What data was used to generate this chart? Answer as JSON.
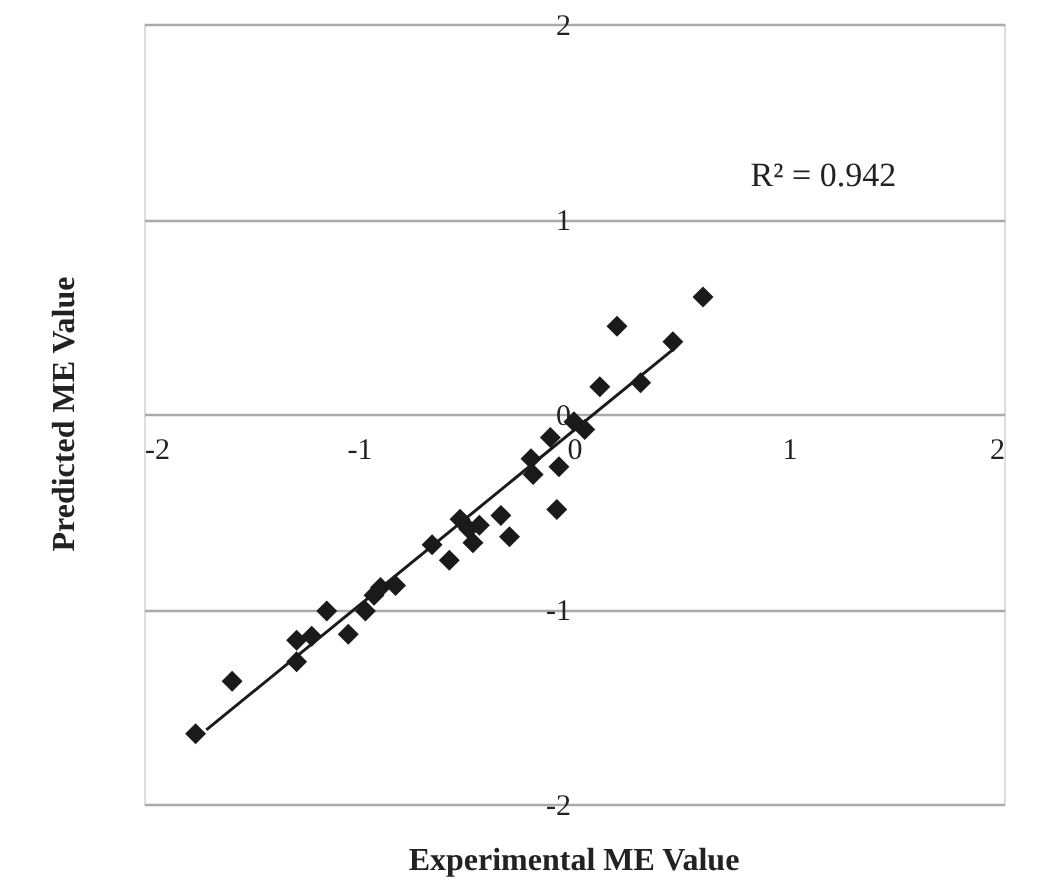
{
  "chart_data": {
    "type": "scatter",
    "xlabel": "Experimental ME Value",
    "ylabel": "Predicted ME Value",
    "xlim": [
      -2,
      2
    ],
    "ylim": [
      -2,
      2
    ],
    "xticks": [
      -2,
      -1,
      0,
      1,
      2
    ],
    "yticks": [
      -2,
      -1,
      0,
      1,
      2
    ],
    "grid": "y",
    "annotations": [
      "R² = 0.942"
    ],
    "series": [
      {
        "type": "scatter",
        "marker": "diamond",
        "color": "#1a1a1a",
        "x": [
          -1.76,
          -1.59,
          -1.29,
          -1.29,
          -1.22,
          -1.15,
          -1.05,
          -0.97,
          -0.93,
          -0.9,
          -0.83,
          -0.66,
          -0.58,
          -0.53,
          -0.49,
          -0.47,
          -0.44,
          -0.34,
          -0.3,
          -0.2,
          -0.19,
          -0.11,
          -0.07,
          -0.08,
          0.0,
          0.05,
          0.12,
          0.2,
          0.31,
          0.46,
          0.6
        ],
        "values": [
          -1.64,
          -1.37,
          -1.27,
          -1.16,
          -1.14,
          -1.01,
          -1.13,
          -1.01,
          -0.93,
          -0.89,
          -0.88,
          -0.67,
          -0.75,
          -0.54,
          -0.59,
          -0.66,
          -0.57,
          -0.52,
          -0.63,
          -0.23,
          -0.31,
          -0.12,
          -0.27,
          -0.49,
          -0.04,
          -0.08,
          0.14,
          0.45,
          0.16,
          0.37,
          0.6
        ]
      },
      {
        "type": "line",
        "marker": "none",
        "line_style": "solid",
        "color": "#1a1a1a",
        "x": [
          -1.71,
          0.46
        ],
        "values": [
          -1.62,
          0.33
        ]
      }
    ]
  }
}
